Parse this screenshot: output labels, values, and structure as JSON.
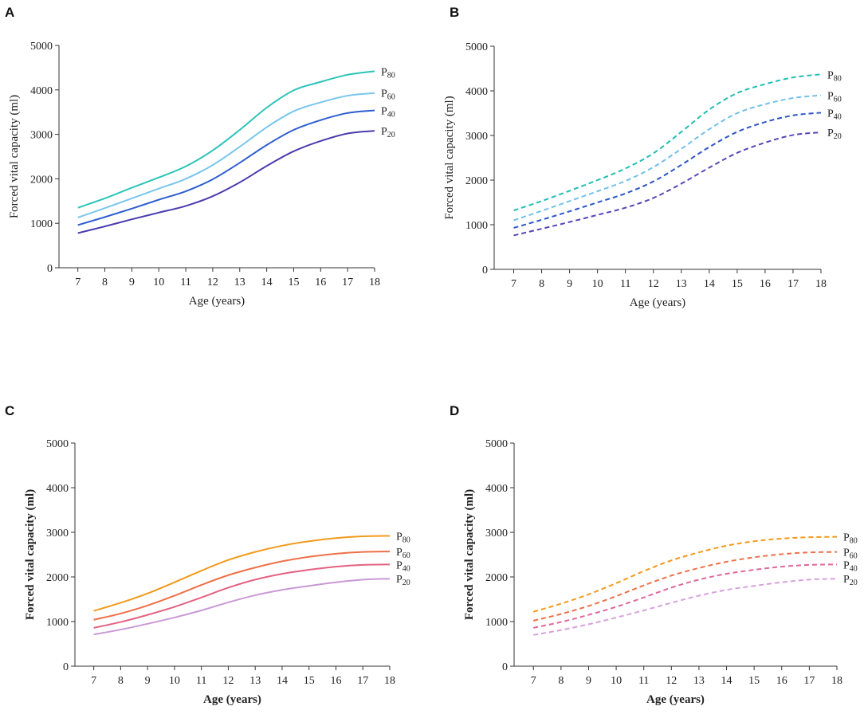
{
  "chart_data": [
    {
      "panel": "A",
      "type": "line",
      "line_style": "solid",
      "xlabel": "Age (years)",
      "ylabel": "Forced vital capacity  (ml)",
      "bold_labels": false,
      "x": [
        7,
        8,
        9,
        10,
        11,
        12,
        13,
        14,
        15,
        16,
        17,
        18
      ],
      "xlim": [
        6.3,
        18
      ],
      "ylim": [
        0,
        5000
      ],
      "xticks": [
        "7",
        "8",
        "9",
        "10",
        "11",
        "12",
        "13",
        "14",
        "15",
        "16",
        "17",
        "18"
      ],
      "yticks": [
        "0",
        "1000",
        "2000",
        "3000",
        "4000",
        "5000"
      ],
      "yticks_values": [
        0,
        1000,
        2000,
        3000,
        4000,
        5000
      ],
      "series": [
        {
          "name": "P",
          "sub": "80",
          "color": "#2cc4b8",
          "values": [
            1350,
            1560,
            1800,
            2030,
            2280,
            2640,
            3100,
            3600,
            3990,
            4180,
            4340,
            4420
          ]
        },
        {
          "name": "P",
          "sub": "60",
          "color": "#79c6ec",
          "values": [
            1130,
            1340,
            1560,
            1780,
            2000,
            2310,
            2720,
            3160,
            3520,
            3720,
            3870,
            3930
          ]
        },
        {
          "name": "P",
          "sub": "40",
          "color": "#2e5ecf",
          "values": [
            960,
            1140,
            1330,
            1530,
            1720,
            1990,
            2360,
            2760,
            3100,
            3320,
            3480,
            3540
          ]
        },
        {
          "name": "P",
          "sub": "20",
          "color": "#4b3caf",
          "values": [
            780,
            930,
            1090,
            1240,
            1390,
            1610,
            1920,
            2290,
            2620,
            2850,
            3020,
            3080
          ]
        }
      ]
    },
    {
      "panel": "B",
      "type": "line",
      "line_style": "dashed",
      "xlabel": "Age (years)",
      "ylabel": "Forced vital capacity  (ml)",
      "bold_labels": false,
      "x": [
        7,
        8,
        9,
        10,
        11,
        12,
        13,
        14,
        15,
        16,
        17,
        18
      ],
      "xlim": [
        6.3,
        18
      ],
      "ylim": [
        0,
        5000
      ],
      "xticks": [
        "7",
        "8",
        "9",
        "10",
        "11",
        "12",
        "13",
        "14",
        "15",
        "16",
        "17",
        "18"
      ],
      "yticks": [
        "0",
        "1000",
        "2000",
        "3000",
        "4000",
        "5000"
      ],
      "yticks_values": [
        0,
        1000,
        2000,
        3000,
        4000,
        5000
      ],
      "series": [
        {
          "name": "P",
          "sub": "80",
          "color": "#20bdb2",
          "values": [
            1320,
            1530,
            1760,
            2000,
            2260,
            2600,
            3080,
            3580,
            3950,
            4150,
            4300,
            4370
          ]
        },
        {
          "name": "P",
          "sub": "60",
          "color": "#72c0ea",
          "values": [
            1100,
            1310,
            1530,
            1750,
            1980,
            2290,
            2700,
            3140,
            3500,
            3700,
            3840,
            3900
          ]
        },
        {
          "name": "P",
          "sub": "40",
          "color": "#2d55c6",
          "values": [
            930,
            1110,
            1300,
            1500,
            1700,
            1970,
            2340,
            2740,
            3080,
            3300,
            3450,
            3510
          ]
        },
        {
          "name": "P",
          "sub": "20",
          "color": "#5446b6",
          "values": [
            760,
            910,
            1060,
            1220,
            1380,
            1600,
            1920,
            2280,
            2610,
            2840,
            3010,
            3070
          ]
        }
      ]
    },
    {
      "panel": "C",
      "type": "line",
      "line_style": "solid",
      "xlabel": "Age (years)",
      "ylabel": "Forced vital capacity  (ml)",
      "bold_labels": true,
      "x": [
        7,
        8,
        9,
        10,
        11,
        12,
        13,
        14,
        15,
        16,
        17,
        18
      ],
      "xlim": [
        6.3,
        18
      ],
      "ylim": [
        0,
        5000
      ],
      "xticks": [
        "7",
        "8",
        "9",
        "10",
        "11",
        "12",
        "13",
        "14",
        "15",
        "16",
        "17",
        "18"
      ],
      "yticks": [
        "0",
        "1000",
        "2000",
        "3000",
        "4000",
        "5000"
      ],
      "yticks_values": [
        0,
        1000,
        2000,
        3000,
        4000,
        5000
      ],
      "series": [
        {
          "name": "P",
          "sub": "80",
          "color": "#f29a1c",
          "values": [
            1240,
            1420,
            1630,
            1880,
            2140,
            2380,
            2560,
            2700,
            2800,
            2870,
            2910,
            2920
          ]
        },
        {
          "name": "P",
          "sub": "60",
          "color": "#ee7048",
          "values": [
            1040,
            1180,
            1360,
            1580,
            1820,
            2040,
            2210,
            2350,
            2450,
            2520,
            2560,
            2570
          ]
        },
        {
          "name": "P",
          "sub": "40",
          "color": "#e46282",
          "values": [
            860,
            990,
            1150,
            1330,
            1540,
            1760,
            1940,
            2070,
            2160,
            2230,
            2270,
            2280
          ]
        },
        {
          "name": "P",
          "sub": "20",
          "color": "#c999d6",
          "values": [
            710,
            820,
            950,
            1090,
            1250,
            1430,
            1590,
            1710,
            1800,
            1880,
            1940,
            1960
          ]
        }
      ]
    },
    {
      "panel": "D",
      "type": "line",
      "line_style": "dashed",
      "xlabel": "Age (years)",
      "ylabel": "Forced vital capacity  (ml)",
      "bold_labels": true,
      "x": [
        7,
        8,
        9,
        10,
        11,
        12,
        13,
        14,
        15,
        16,
        17,
        18
      ],
      "xlim": [
        6.3,
        18
      ],
      "ylim": [
        0,
        5000
      ],
      "xticks": [
        "7",
        "8",
        "9",
        "10",
        "11",
        "12",
        "13",
        "14",
        "15",
        "16",
        "17",
        "18"
      ],
      "yticks": [
        "0",
        "1000",
        "2000",
        "3000",
        "4000",
        "5000"
      ],
      "yticks_values": [
        0,
        1000,
        2000,
        3000,
        4000,
        5000
      ],
      "series": [
        {
          "name": "P",
          "sub": "80",
          "color": "#f29a1c",
          "values": [
            1220,
            1400,
            1610,
            1860,
            2130,
            2370,
            2550,
            2700,
            2800,
            2860,
            2890,
            2900
          ]
        },
        {
          "name": "P",
          "sub": "60",
          "color": "#ee7048",
          "values": [
            1020,
            1170,
            1350,
            1570,
            1810,
            2030,
            2200,
            2340,
            2440,
            2510,
            2550,
            2560
          ]
        },
        {
          "name": "P",
          "sub": "40",
          "color": "#e0689a",
          "values": [
            860,
            990,
            1150,
            1330,
            1540,
            1760,
            1940,
            2070,
            2160,
            2230,
            2270,
            2280
          ]
        },
        {
          "name": "P",
          "sub": "20",
          "color": "#d7a0de",
          "values": [
            700,
            810,
            940,
            1090,
            1250,
            1420,
            1580,
            1710,
            1800,
            1880,
            1940,
            1960
          ]
        }
      ]
    }
  ]
}
